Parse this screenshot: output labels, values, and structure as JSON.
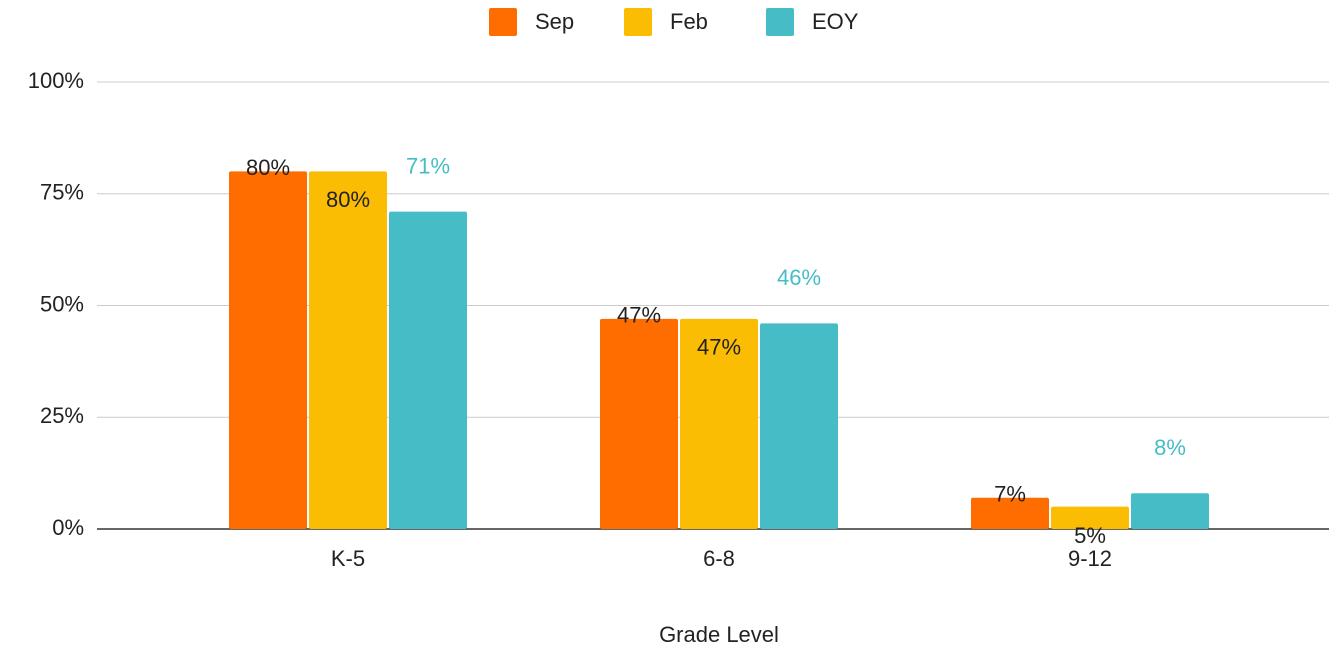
{
  "chart_data": {
    "type": "bar",
    "x_label": "Grade Level",
    "categories": [
      "K-5",
      "6-8",
      "9-12"
    ],
    "series": [
      {
        "name": "Sep",
        "color": "#ff6d01",
        "values": [
          80,
          47,
          7
        ],
        "value_labels": [
          "80%",
          "47%",
          "7%"
        ]
      },
      {
        "name": "Feb",
        "color": "#fbbc04",
        "values": [
          80,
          47,
          5
        ],
        "value_labels": [
          "80%",
          "47%",
          "5%"
        ]
      },
      {
        "name": "EOY",
        "color": "#46bdc6",
        "values": [
          71,
          46,
          8
        ],
        "value_labels": [
          "71%",
          "46%",
          "8%"
        ]
      }
    ],
    "ylim": [
      0,
      100
    ],
    "yticks": [
      {
        "value": 0,
        "label": "0%"
      },
      {
        "value": 25,
        "label": "25%"
      },
      {
        "value": 50,
        "label": "50%"
      },
      {
        "value": 75,
        "label": "75%"
      },
      {
        "value": 100,
        "label": "100%"
      }
    ],
    "grid": true,
    "legend": "top"
  }
}
